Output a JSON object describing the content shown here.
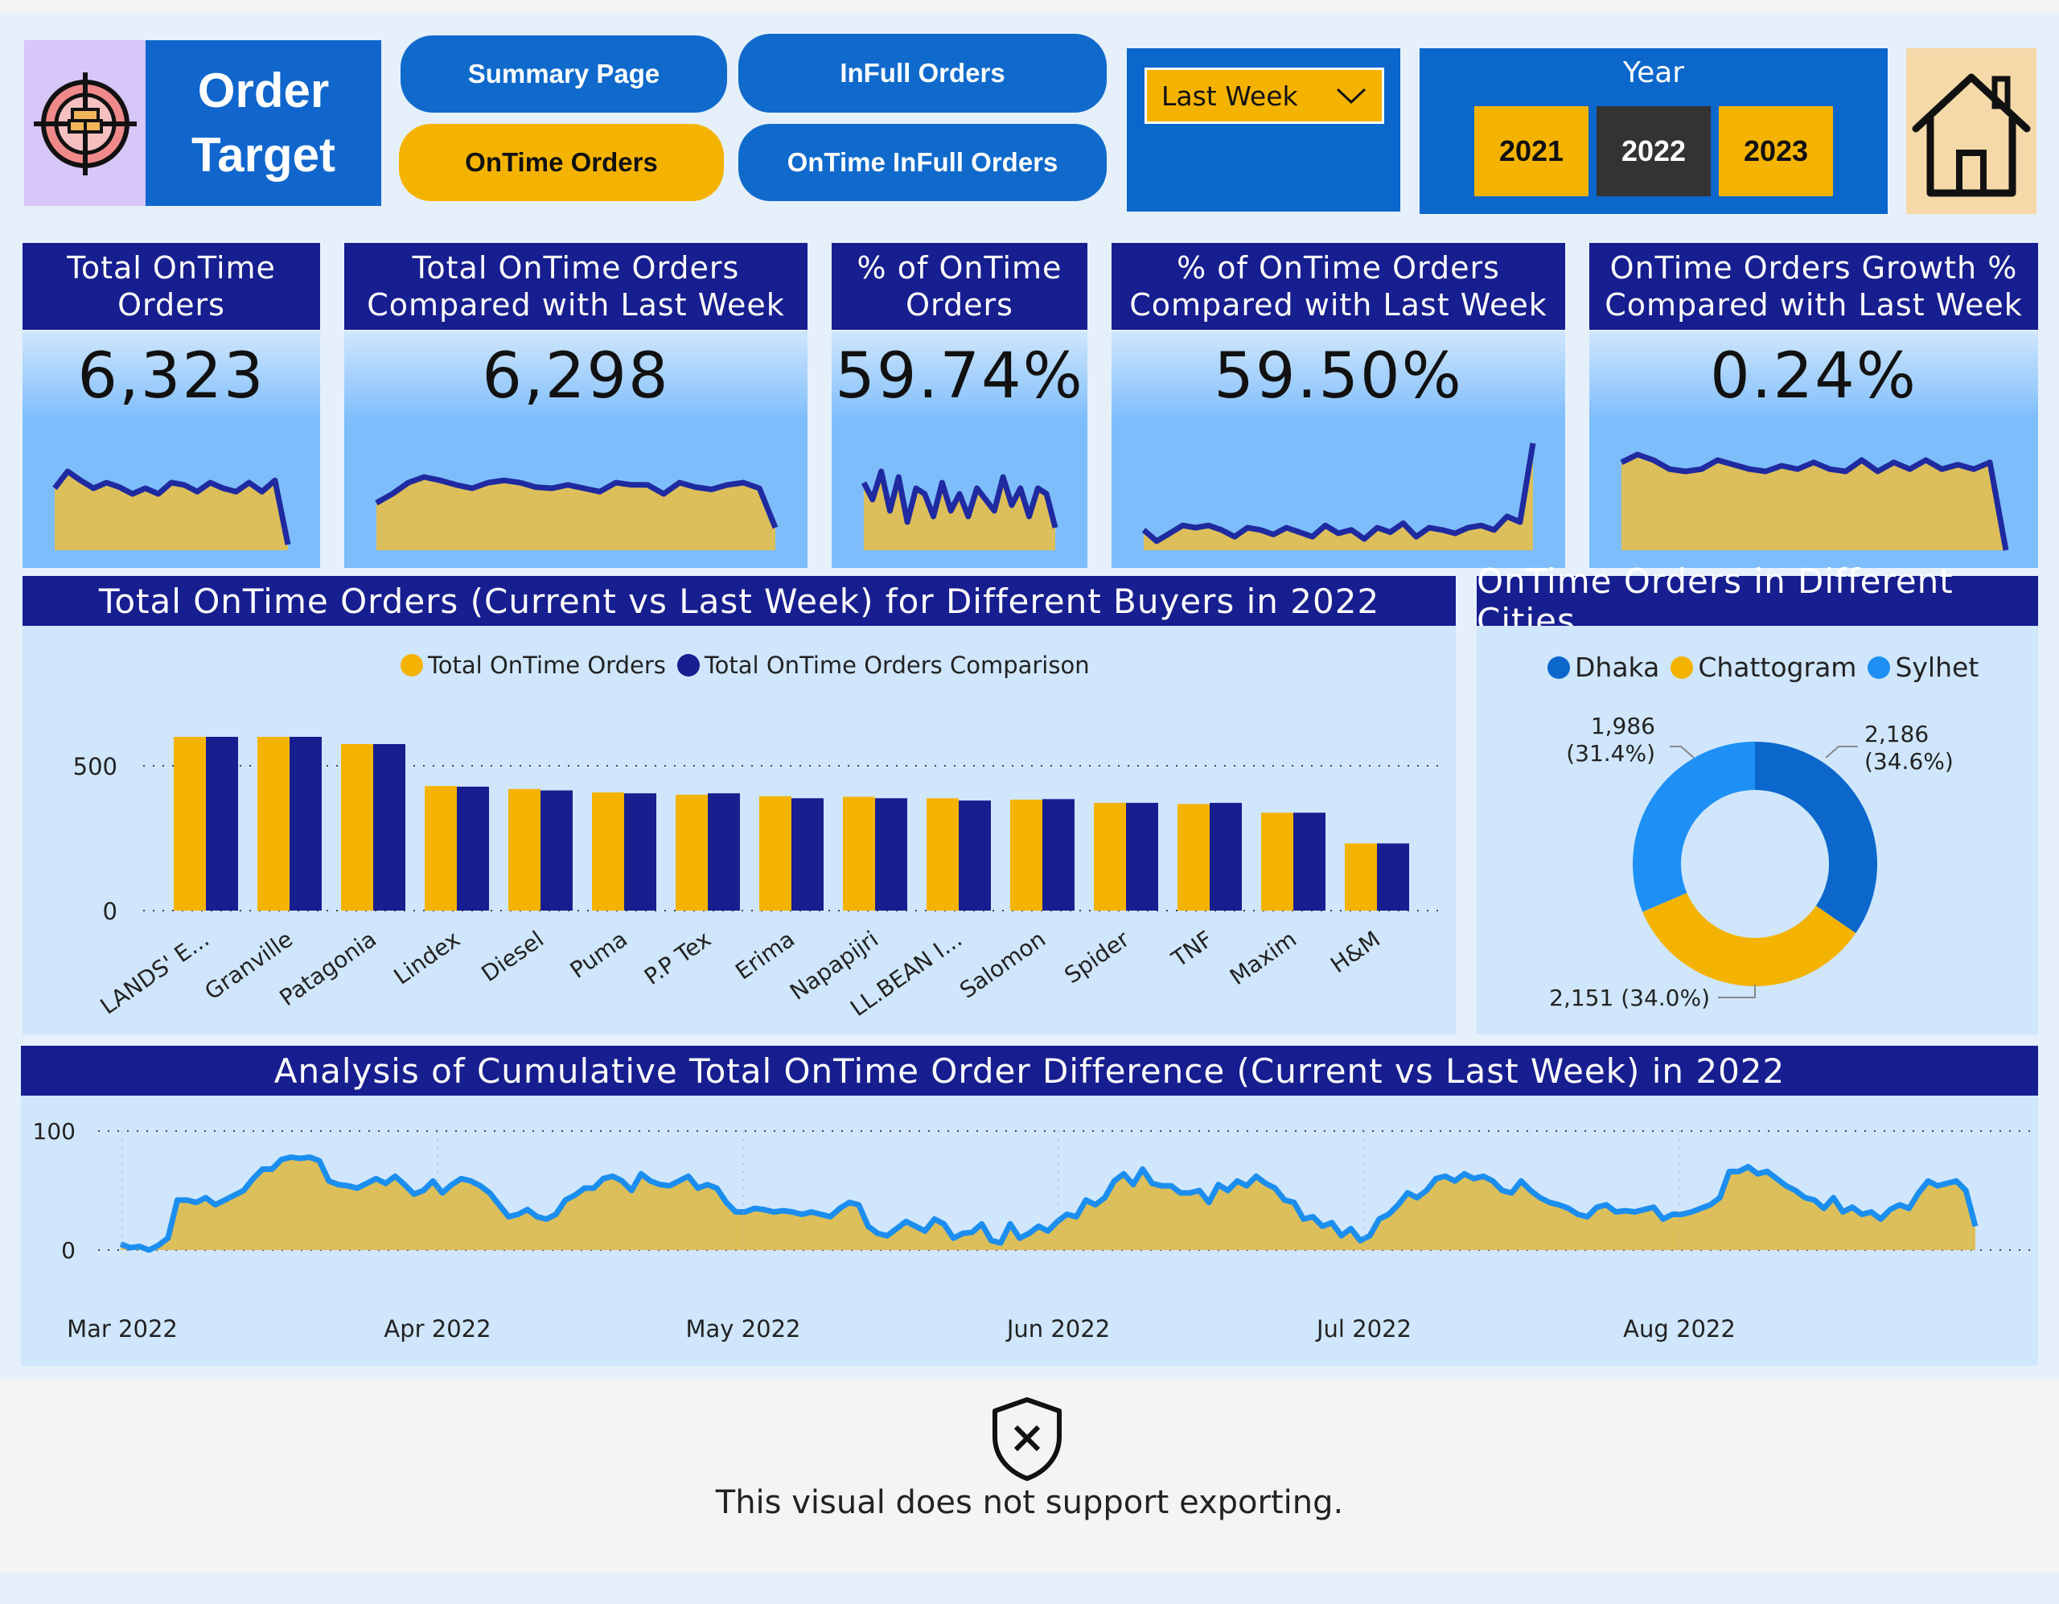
{
  "header": {
    "title": "Order\nTarget",
    "logo_icon": "target-boxes-icon",
    "nav": {
      "summary": "Summary Page",
      "infull": "InFull Orders",
      "ontime": "OnTime Orders",
      "otif": "OnTime InFull Orders"
    },
    "period_dropdown": {
      "selected": "Last Week",
      "icon": "chevron-down-icon"
    },
    "year_slicer": {
      "label": "Year",
      "options": [
        "2021",
        "2022",
        "2023"
      ],
      "selected": "2022"
    },
    "home_icon": "home-icon"
  },
  "colors": {
    "yellow": "#f5b301",
    "navy": "#171e8f",
    "blue": "#0f6acc",
    "light_blue": "#1e90f5",
    "dark": "#333333",
    "area_fill": "#dcbf5a",
    "line": "#1b8ef0"
  },
  "kpis": [
    {
      "title": "Total OnTime\nOrders",
      "value": "6,323",
      "spark": [
        0.55,
        0.7,
        0.62,
        0.55,
        0.6,
        0.56,
        0.5,
        0.55,
        0.5,
        0.6,
        0.58,
        0.52,
        0.6,
        0.55,
        0.52,
        0.6,
        0.52,
        0.62,
        0.05
      ]
    },
    {
      "title": "Total OnTime Orders\nCompared with Last Week",
      "value": "6,298",
      "spark": [
        0.42,
        0.5,
        0.6,
        0.65,
        0.62,
        0.58,
        0.55,
        0.6,
        0.62,
        0.6,
        0.56,
        0.55,
        0.58,
        0.55,
        0.52,
        0.6,
        0.58,
        0.58,
        0.5,
        0.6,
        0.56,
        0.54,
        0.58,
        0.6,
        0.55,
        0.2
      ]
    },
    {
      "title": "% of OnTime\nOrders",
      "value": "59.74%",
      "spark": [
        0.6,
        0.45,
        0.7,
        0.35,
        0.65,
        0.25,
        0.55,
        0.5,
        0.3,
        0.6,
        0.35,
        0.5,
        0.3,
        0.55,
        0.45,
        0.35,
        0.65,
        0.4,
        0.55,
        0.3,
        0.55,
        0.5,
        0.2
      ]
    },
    {
      "title": "% of OnTime Orders\nCompared with Last Week",
      "value": "59.50%",
      "spark": [
        0.18,
        0.08,
        0.15,
        0.22,
        0.2,
        0.22,
        0.18,
        0.12,
        0.2,
        0.18,
        0.14,
        0.2,
        0.16,
        0.12,
        0.22,
        0.15,
        0.18,
        0.1,
        0.2,
        0.16,
        0.24,
        0.12,
        0.2,
        0.18,
        0.15,
        0.2,
        0.22,
        0.18,
        0.3,
        0.25,
        0.95
      ]
    },
    {
      "title": "OnTime Orders Growth %\nCompared with Last Week",
      "value": "0.24%",
      "spark": [
        0.78,
        0.85,
        0.8,
        0.72,
        0.7,
        0.72,
        0.8,
        0.76,
        0.72,
        0.7,
        0.75,
        0.72,
        0.78,
        0.72,
        0.7,
        0.8,
        0.7,
        0.78,
        0.72,
        0.8,
        0.72,
        0.76,
        0.72,
        0.78,
        0.0
      ]
    }
  ],
  "chart_data": [
    {
      "type": "bar",
      "title": "Total OnTime Orders (Current vs Last Week) for Different Buyers in 2022",
      "categories": [
        "LANDS' E...",
        "Granville",
        "Patagonia",
        "Lindex",
        "Diesel",
        "Puma",
        "P.P Tex",
        "Erima",
        "Napapijri",
        "LL.BEAN I...",
        "Salomon",
        "Spider",
        "TNF",
        "Maxim",
        "H&M"
      ],
      "series": [
        {
          "name": "Total OnTime Orders",
          "values": [
            600,
            600,
            575,
            430,
            420,
            408,
            400,
            395,
            393,
            388,
            383,
            372,
            368,
            338,
            232
          ]
        },
        {
          "name": "Total OnTime Orders Comparison",
          "values": [
            600,
            600,
            575,
            428,
            415,
            405,
            405,
            388,
            388,
            380,
            385,
            372,
            372,
            338,
            232
          ]
        }
      ],
      "yticks": [
        "0",
        "500"
      ],
      "ylim": [
        0,
        650
      ]
    },
    {
      "type": "pie",
      "title": "OnTime Orders in Different Cities",
      "series": [
        {
          "name": "Dhaka",
          "value": 2186,
          "label": "2,186\n(34.6%)"
        },
        {
          "name": "Chattogram",
          "value": 2151,
          "label": "2,151 (34.0%)"
        },
        {
          "name": "Sylhet",
          "value": 1986,
          "label": "1,986\n(31.4%)"
        }
      ]
    },
    {
      "type": "area",
      "title": "Analysis of Cumulative Total OnTime Order Difference (Current vs Last Week) in 2022",
      "x_labels": [
        "Mar 2022",
        "Apr 2022",
        "May 2022",
        "Jun 2022",
        "Jul 2022",
        "Aug 2022"
      ],
      "yticks": [
        "0",
        "100"
      ],
      "ylim": [
        -5,
        105
      ],
      "values": [
        5,
        2,
        3,
        0,
        4,
        10,
        42,
        42,
        40,
        44,
        38,
        42,
        46,
        50,
        60,
        68,
        68,
        76,
        78,
        77,
        78,
        75,
        58,
        55,
        54,
        52,
        56,
        60,
        56,
        62,
        55,
        47,
        50,
        58,
        48,
        55,
        60,
        58,
        54,
        48,
        38,
        28,
        30,
        34,
        28,
        26,
        30,
        42,
        46,
        52,
        52,
        60,
        62,
        58,
        50,
        64,
        58,
        55,
        54,
        58,
        62,
        52,
        55,
        52,
        40,
        32,
        32,
        35,
        34,
        32,
        33,
        32,
        30,
        32,
        30,
        28,
        35,
        40,
        38,
        20,
        14,
        12,
        18,
        24,
        20,
        16,
        26,
        22,
        10,
        14,
        15,
        22,
        8,
        6,
        22,
        10,
        14,
        20,
        16,
        24,
        30,
        28,
        42,
        38,
        44,
        58,
        64,
        55,
        68,
        56,
        54,
        54,
        48,
        48,
        50,
        40,
        55,
        50,
        58,
        54,
        62,
        56,
        52,
        42,
        40,
        26,
        28,
        20,
        23,
        12,
        18,
        8,
        12,
        26,
        30,
        38,
        48,
        44,
        50,
        60,
        62,
        58,
        64,
        60,
        62,
        58,
        50,
        48,
        58,
        50,
        44,
        40,
        38,
        35,
        30,
        28,
        36,
        38,
        32,
        33,
        32,
        34,
        36,
        26,
        30,
        30,
        32,
        35,
        38,
        44,
        66,
        66,
        70,
        64,
        66,
        60,
        54,
        50,
        44,
        42,
        35,
        44,
        32,
        36,
        30,
        32,
        26,
        34,
        38,
        35,
        48,
        58,
        54,
        56,
        58,
        50,
        20
      ]
    }
  ],
  "message": {
    "icon": "shield-x-icon",
    "text": "This visual does not support exporting."
  }
}
